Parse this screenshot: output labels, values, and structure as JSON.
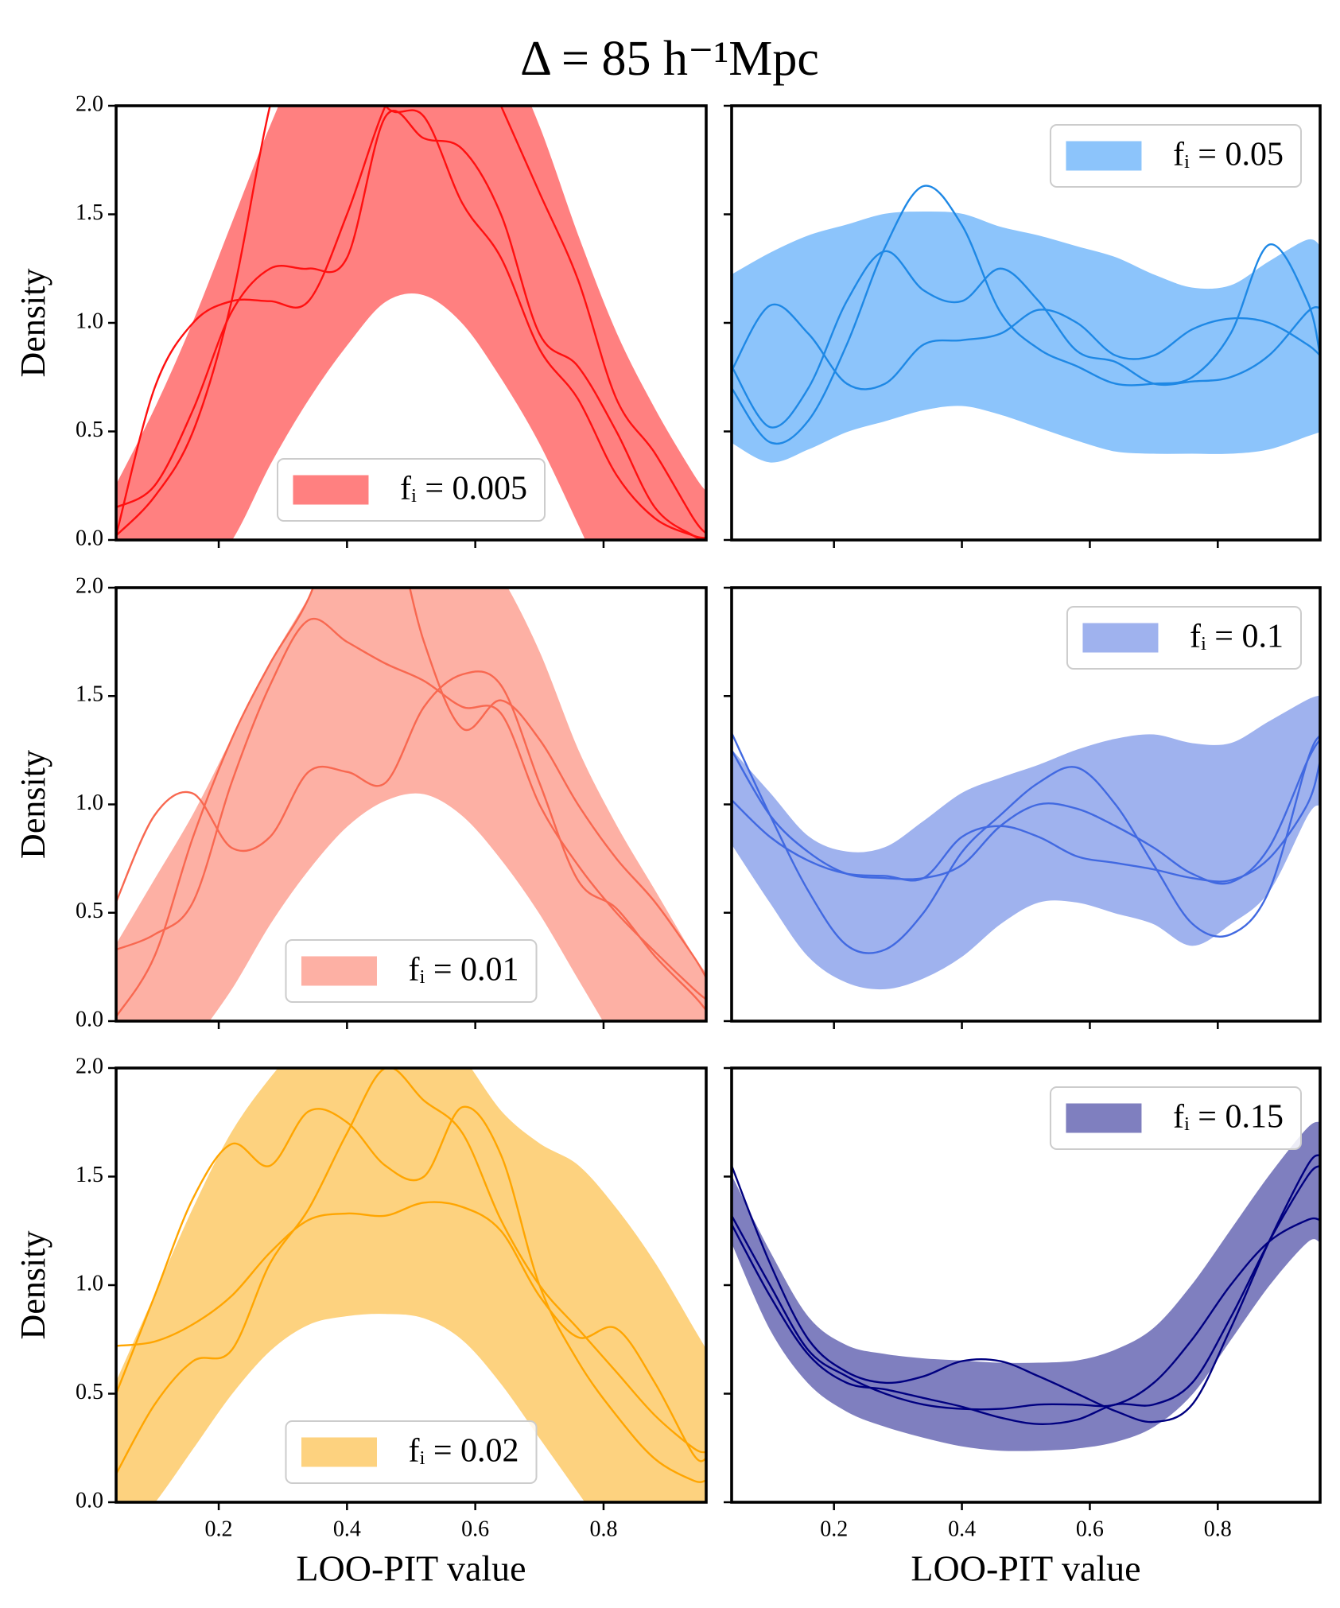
{
  "title": "Δ = 85 h⁻¹Mpc",
  "chart_data": [
    {
      "type": "band",
      "legend": "lower center",
      "ylabel": "Density",
      "x": [
        0.04,
        0.1,
        0.16,
        0.22,
        0.28,
        0.34,
        0.4,
        0.46,
        0.52,
        0.58,
        0.64,
        0.7,
        0.76,
        0.82,
        0.88,
        0.94,
        0.96
      ],
      "xlim": [
        0.04,
        0.96
      ],
      "xticks": [
        0.2,
        0.4,
        0.6,
        0.8
      ],
      "ylim": [
        0,
        2
      ],
      "yticks": [
        {
          "value": 0,
          "label": "0.0"
        },
        0.5,
        {
          "value": 1,
          "label": "1.0"
        },
        1.5,
        {
          "value": 2,
          "label": "2.0"
        }
      ],
      "band": {
        "name": "fᵢ = 0.005",
        "color": "#ff8080",
        "lower": [
          -0.6,
          -0.4,
          -0.2,
          0,
          0.35,
          0.65,
          0.9,
          1.1,
          1.13,
          1.0,
          0.75,
          0.45,
          0.08,
          -0.3,
          -0.6,
          -0.9,
          -1.0
        ],
        "upper": [
          0.25,
          0.6,
          1.0,
          1.45,
          1.9,
          2.3,
          2.6,
          2.8,
          2.8,
          2.6,
          2.3,
          1.9,
          1.4,
          0.95,
          0.6,
          0.3,
          0.22
        ]
      },
      "series": [
        {
          "color": "#ff1010",
          "values": [
            0.15,
            0.25,
            0.6,
            1.05,
            1.25,
            1.25,
            1.3,
            1.95,
            1.85,
            1.8,
            1.5,
            0.95,
            0.8,
            0.5,
            0.15,
            0.02,
            0.0
          ]
        },
        {
          "color": "#ff1010",
          "values": [
            0.02,
            0.7,
            1.0,
            1.1,
            1.1,
            1.1,
            1.5,
            2.0,
            2.3,
            2.4,
            2.0,
            1.6,
            1.2,
            0.65,
            0.4,
            0.1,
            0.03
          ]
        },
        {
          "color": "#ff1010",
          "values": [
            0.02,
            0.2,
            0.5,
            1.1,
            2.0,
            2.6,
            2.4,
            2.0,
            1.95,
            1.55,
            1.3,
            0.88,
            0.65,
            0.3,
            0.1,
            0.02,
            0.01
          ]
        }
      ]
    },
    {
      "type": "band",
      "legend": "upper right",
      "x": [
        0.04,
        0.1,
        0.16,
        0.22,
        0.28,
        0.34,
        0.4,
        0.46,
        0.52,
        0.58,
        0.64,
        0.7,
        0.76,
        0.82,
        0.88,
        0.94,
        0.96
      ],
      "xlim": [
        0.04,
        0.96
      ],
      "xticks": [
        0.2,
        0.4,
        0.6,
        0.8
      ],
      "ylim": [
        0,
        2
      ],
      "yticks": [
        0,
        0.5,
        1,
        1.5,
        2
      ],
      "band": {
        "name": "fᵢ = 0.05",
        "color": "#8cc4fb",
        "lower": [
          0.45,
          0.36,
          0.42,
          0.5,
          0.55,
          0.6,
          0.62,
          0.58,
          0.52,
          0.46,
          0.41,
          0.4,
          0.4,
          0.4,
          0.42,
          0.48,
          0.5
        ],
        "upper": [
          1.22,
          1.32,
          1.4,
          1.45,
          1.5,
          1.51,
          1.5,
          1.44,
          1.4,
          1.35,
          1.3,
          1.22,
          1.16,
          1.17,
          1.28,
          1.38,
          1.35
        ]
      },
      "series": [
        {
          "color": "#1e88e5",
          "values": [
            0.7,
            0.45,
            0.55,
            0.9,
            1.35,
            1.63,
            1.45,
            1.05,
            0.88,
            0.8,
            0.72,
            0.72,
            0.75,
            0.95,
            1.36,
            1.1,
            0.85
          ]
        },
        {
          "color": "#1e88e5",
          "values": [
            0.8,
            0.52,
            0.7,
            1.1,
            1.33,
            1.15,
            1.1,
            1.25,
            1.1,
            0.87,
            0.82,
            0.72,
            0.73,
            0.75,
            0.85,
            1.05,
            1.07
          ]
        },
        {
          "color": "#1e88e5",
          "values": [
            0.78,
            1.08,
            0.95,
            0.72,
            0.72,
            0.9,
            0.92,
            0.95,
            1.06,
            1.0,
            0.85,
            0.85,
            0.97,
            1.02,
            1.0,
            0.9,
            0.85
          ]
        }
      ]
    },
    {
      "type": "band",
      "legend": "lower center",
      "ylabel": "Density",
      "x": [
        0.04,
        0.1,
        0.16,
        0.22,
        0.28,
        0.34,
        0.4,
        0.46,
        0.52,
        0.58,
        0.64,
        0.7,
        0.76,
        0.82,
        0.88,
        0.94,
        0.96
      ],
      "xlim": [
        0.04,
        0.96
      ],
      "xticks": [
        0.2,
        0.4,
        0.6,
        0.8
      ],
      "ylim": [
        0,
        2
      ],
      "yticks": [
        {
          "value": 0,
          "label": "0.0"
        },
        0.5,
        {
          "value": 1,
          "label": "1.0"
        },
        1.5,
        {
          "value": 2,
          "label": "2.0"
        }
      ],
      "band": {
        "name": "fᵢ = 0.01",
        "color": "#fdb0a4",
        "lower": [
          -0.6,
          -0.35,
          -0.1,
          0.15,
          0.45,
          0.7,
          0.9,
          1.02,
          1.05,
          0.95,
          0.75,
          0.5,
          0.2,
          -0.1,
          -0.4,
          -0.7,
          -0.8
        ],
        "upper": [
          0.35,
          0.65,
          0.95,
          1.3,
          1.65,
          1.95,
          2.25,
          2.4,
          2.45,
          2.3,
          2.05,
          1.7,
          1.25,
          0.9,
          0.6,
          0.3,
          0.22
        ]
      },
      "series": [
        {
          "color": "#f86850",
          "values": [
            0.55,
            0.95,
            1.05,
            0.8,
            0.85,
            1.15,
            1.15,
            1.1,
            1.45,
            1.6,
            1.55,
            1.1,
            0.65,
            0.52,
            0.3,
            0.12,
            0.05
          ]
        },
        {
          "color": "#f86850",
          "values": [
            0.33,
            0.4,
            0.55,
            1.1,
            1.55,
            1.85,
            1.75,
            1.65,
            1.57,
            1.45,
            1.42,
            1.0,
            0.72,
            0.5,
            0.32,
            0.15,
            0.1
          ]
        },
        {
          "color": "#f86850",
          "values": [
            0.02,
            0.3,
            0.85,
            1.3,
            1.65,
            1.95,
            2.4,
            2.4,
            1.75,
            1.35,
            1.48,
            1.3,
            1.0,
            0.75,
            0.55,
            0.3,
            0.2
          ]
        }
      ]
    },
    {
      "type": "band",
      "legend": "upper right",
      "x": [
        0.04,
        0.1,
        0.16,
        0.22,
        0.28,
        0.34,
        0.4,
        0.46,
        0.52,
        0.58,
        0.64,
        0.7,
        0.76,
        0.82,
        0.88,
        0.94,
        0.96
      ],
      "xlim": [
        0.04,
        0.96
      ],
      "xticks": [
        0.2,
        0.4,
        0.6,
        0.8
      ],
      "ylim": [
        0,
        2
      ],
      "yticks": [
        0,
        0.5,
        1,
        1.5,
        2
      ],
      "band": {
        "name": "fᵢ = 0.1",
        "color": "#9fb2ee",
        "lower": [
          0.82,
          0.55,
          0.3,
          0.18,
          0.15,
          0.2,
          0.3,
          0.45,
          0.55,
          0.55,
          0.5,
          0.45,
          0.35,
          0.45,
          0.6,
          0.95,
          1.0
        ],
        "upper": [
          1.25,
          1.05,
          0.85,
          0.78,
          0.8,
          0.92,
          1.05,
          1.12,
          1.18,
          1.25,
          1.3,
          1.32,
          1.28,
          1.28,
          1.38,
          1.48,
          1.5
        ]
      },
      "series": [
        {
          "color": "#4169e1",
          "values": [
            1.33,
            0.95,
            0.6,
            0.35,
            0.33,
            0.5,
            0.78,
            0.95,
            1.1,
            1.17,
            1.0,
            0.72,
            0.45,
            0.4,
            0.6,
            1.2,
            1.32
          ]
        },
        {
          "color": "#4169e1",
          "values": [
            1.25,
            0.95,
            0.78,
            0.68,
            0.66,
            0.66,
            0.72,
            0.9,
            1.0,
            0.98,
            0.9,
            0.8,
            0.68,
            0.64,
            0.8,
            1.2,
            1.3
          ]
        },
        {
          "color": "#4169e1",
          "values": [
            1.02,
            0.85,
            0.74,
            0.68,
            0.67,
            0.66,
            0.85,
            0.9,
            0.85,
            0.76,
            0.73,
            0.7,
            0.66,
            0.65,
            0.75,
            1.0,
            1.2
          ]
        }
      ]
    },
    {
      "type": "band",
      "legend": "lower center",
      "ylabel": "Density",
      "xlabel": "LOO-PIT value",
      "x": [
        0.04,
        0.1,
        0.16,
        0.22,
        0.28,
        0.34,
        0.4,
        0.46,
        0.52,
        0.58,
        0.64,
        0.7,
        0.76,
        0.82,
        0.88,
        0.94,
        0.96
      ],
      "xlim": [
        0.04,
        0.96
      ],
      "xticks": [
        0.2,
        0.4,
        0.6,
        0.8
      ],
      "ylim": [
        0,
        2
      ],
      "yticks": [
        {
          "value": 0,
          "label": "0.0"
        },
        0.5,
        {
          "value": 1,
          "label": "1.0"
        },
        1.5,
        {
          "value": 2,
          "label": "2.0"
        }
      ],
      "band": {
        "name": "fᵢ = 0.02",
        "color": "#fdd27f",
        "lower": [
          -0.2,
          0.0,
          0.25,
          0.5,
          0.7,
          0.82,
          0.86,
          0.87,
          0.85,
          0.75,
          0.55,
          0.3,
          0.05,
          -0.2,
          -0.4,
          -0.6,
          -0.7
        ],
        "upper": [
          0.55,
          0.95,
          1.35,
          1.7,
          1.95,
          2.15,
          2.3,
          2.35,
          2.25,
          2.05,
          1.8,
          1.65,
          1.55,
          1.35,
          1.1,
          0.8,
          0.7
        ]
      },
      "series": [
        {
          "color": "#ffa500",
          "values": [
            0.72,
            0.74,
            0.82,
            0.95,
            1.15,
            1.3,
            1.33,
            1.32,
            1.38,
            1.36,
            1.25,
            0.95,
            0.76,
            0.8,
            0.55,
            0.22,
            0.2
          ]
        },
        {
          "color": "#ffa500",
          "values": [
            0.5,
            0.95,
            1.4,
            1.65,
            1.55,
            1.8,
            1.75,
            1.55,
            1.5,
            1.82,
            1.6,
            1.0,
            0.65,
            0.4,
            0.2,
            0.1,
            0.1
          ]
        },
        {
          "color": "#ffa500",
          "values": [
            0.13,
            0.45,
            0.65,
            0.7,
            1.1,
            1.35,
            1.7,
            2.0,
            1.85,
            1.7,
            1.3,
            1.0,
            0.8,
            0.6,
            0.4,
            0.25,
            0.23
          ]
        }
      ]
    },
    {
      "type": "band",
      "legend": "upper right",
      "xlabel": "LOO-PIT value",
      "x": [
        0.04,
        0.1,
        0.16,
        0.22,
        0.28,
        0.34,
        0.4,
        0.46,
        0.52,
        0.58,
        0.64,
        0.7,
        0.76,
        0.82,
        0.88,
        0.94,
        0.96
      ],
      "xlim": [
        0.04,
        0.96
      ],
      "xticks": [
        0.2,
        0.4,
        0.6,
        0.8
      ],
      "ylim": [
        0,
        2
      ],
      "yticks": [
        0,
        0.5,
        1,
        1.5,
        2
      ],
      "band": {
        "name": "fᵢ = 0.15",
        "color": "#7f7fbf",
        "lower": [
          1.2,
          0.8,
          0.55,
          0.42,
          0.35,
          0.3,
          0.26,
          0.24,
          0.24,
          0.25,
          0.28,
          0.35,
          0.5,
          0.75,
          1.0,
          1.2,
          1.2
        ],
        "upper": [
          1.5,
          1.15,
          0.85,
          0.72,
          0.68,
          0.66,
          0.65,
          0.64,
          0.64,
          0.65,
          0.7,
          0.8,
          1.0,
          1.25,
          1.5,
          1.72,
          1.75
        ]
      },
      "series": [
        {
          "color": "#000080",
          "values": [
            1.55,
            1.1,
            0.75,
            0.6,
            0.55,
            0.58,
            0.65,
            0.65,
            0.58,
            0.5,
            0.42,
            0.37,
            0.45,
            0.8,
            1.2,
            1.55,
            1.6
          ]
        },
        {
          "color": "#000080",
          "values": [
            1.32,
            1.0,
            0.7,
            0.58,
            0.5,
            0.45,
            0.43,
            0.43,
            0.45,
            0.45,
            0.45,
            0.55,
            0.75,
            1.0,
            1.2,
            1.3,
            1.3
          ]
        },
        {
          "color": "#000080",
          "values": [
            1.28,
            0.95,
            0.68,
            0.55,
            0.52,
            0.48,
            0.44,
            0.39,
            0.36,
            0.38,
            0.45,
            0.45,
            0.55,
            0.85,
            1.2,
            1.5,
            1.55
          ]
        }
      ]
    }
  ]
}
